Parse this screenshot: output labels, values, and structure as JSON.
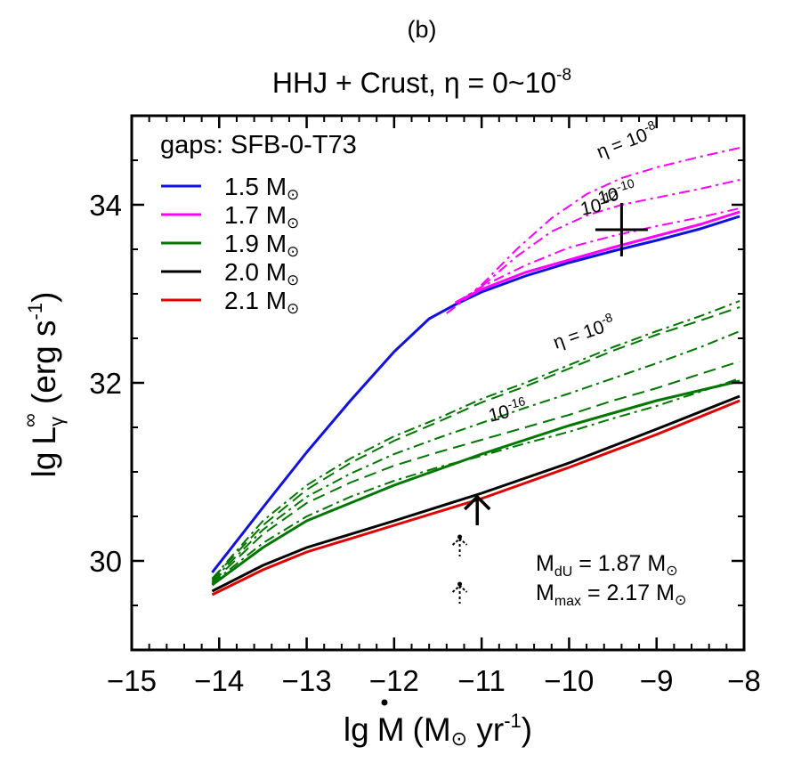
{
  "panel_label": "(b)",
  "chart_data": {
    "type": "line",
    "title": "HHJ + Crust, η = 0~10",
    "title_exponent": "-8",
    "xlabel": {
      "lg": "lg",
      "symbol": "M",
      "units": "(M",
      "sun": "⊙",
      "yr": " yr",
      "exp": "-1",
      "close": ")"
    },
    "ylabel": {
      "lg": "lg",
      "symbol": "L",
      "sub": "γ",
      "sup": "∞",
      "units": " (erg s",
      "exp": "-1",
      "close": ")"
    },
    "xlim": [
      -15,
      -8
    ],
    "ylim": [
      29,
      35
    ],
    "xticks": [
      -15,
      -14,
      -13,
      -12,
      -11,
      -10,
      -9,
      -8
    ],
    "xtick_labels": [
      "−15",
      "−14",
      "−13",
      "−12",
      "−11",
      "−10",
      "−9",
      "−8"
    ],
    "yticks": [
      30,
      32,
      34
    ],
    "ytick_labels": [
      "30",
      "32",
      "34"
    ],
    "legend": {
      "title": "gaps: SFB-0-T73",
      "placement": "top-left",
      "items": [
        {
          "label": "1.5 M",
          "sun": "⊙",
          "color": "#1010e0"
        },
        {
          "label": "1.7 M",
          "sun": "⊙",
          "color": "#ff00ff"
        },
        {
          "label": "1.9 M",
          "sun": "⊙",
          "color": "#007700"
        },
        {
          "label": "2.0 M",
          "sun": "⊙",
          "color": "#000000"
        },
        {
          "label": "2.1 M",
          "sun": "⊙",
          "color": "#e00000"
        }
      ]
    },
    "series": [
      {
        "name": "1.5 M⊙",
        "color": "#1010e0",
        "dash": "solid",
        "x": [
          -14.08,
          -13.5,
          -13.0,
          -12.5,
          -12.0,
          -11.6,
          -11.3,
          -11.0,
          -10.5,
          -10.0,
          -9.5,
          -9.0,
          -8.5,
          -8.05
        ],
        "y": [
          29.87,
          30.6,
          31.22,
          31.8,
          32.35,
          32.72,
          32.88,
          33.02,
          33.2,
          33.35,
          33.48,
          33.6,
          33.73,
          33.87
        ]
      },
      {
        "name": "1.7 M⊙",
        "color": "#ff00ff",
        "dash": "solid",
        "x": [
          -11.3,
          -11.0,
          -10.5,
          -10.0,
          -9.5,
          -9.0,
          -8.5,
          -8.05
        ],
        "y": [
          32.9,
          33.05,
          33.24,
          33.38,
          33.52,
          33.65,
          33.78,
          33.92
        ]
      },
      {
        "name": "η = 10^-8 (1.7 M⊙)",
        "color": "#ff00ff",
        "dash": "dashdot",
        "x": [
          -11.4,
          -11.0,
          -10.6,
          -10.2,
          -9.8,
          -9.4,
          -9.0,
          -8.5,
          -8.05
        ],
        "y": [
          32.78,
          33.1,
          33.5,
          33.85,
          34.12,
          34.3,
          34.42,
          34.54,
          34.64
        ]
      },
      {
        "name": "η = 10^-10 (1.7 M⊙)",
        "color": "#ff00ff",
        "dash": "dashdot",
        "x": [
          -11.4,
          -11.0,
          -10.6,
          -10.2,
          -9.8,
          -9.4,
          -9.0,
          -8.5,
          -8.05
        ],
        "y": [
          32.78,
          33.08,
          33.42,
          33.7,
          33.88,
          34.0,
          34.08,
          34.18,
          34.28
        ]
      },
      {
        "name": "η = 10^-12 (1.7 M⊙)",
        "color": "#ff00ff",
        "dash": "dashdot",
        "x": [
          -11.3,
          -11.0,
          -10.5,
          -10.0,
          -9.5,
          -9.0,
          -8.5,
          -8.05
        ],
        "y": [
          32.9,
          33.08,
          33.32,
          33.52,
          33.65,
          33.76,
          33.86,
          33.96
        ]
      },
      {
        "name": "1.9 M⊙",
        "color": "#007700",
        "dash": "solid",
        "x": [
          -14.08,
          -13.5,
          -13.0,
          -12.0,
          -11.0,
          -10.0,
          -9.0,
          -8.05
        ],
        "y": [
          29.73,
          30.15,
          30.45,
          30.85,
          31.2,
          31.52,
          31.8,
          32.02
        ]
      },
      {
        "name": "η = 10^-8 (1.9 M⊙)",
        "color": "#007700",
        "dash": "dashdot",
        "x": [
          -14.08,
          -13.5,
          -13.0,
          -12.5,
          -12.0,
          -11.5,
          -11.0,
          -10.5,
          -10.0,
          -9.5,
          -9.0,
          -8.5,
          -8.05
        ],
        "y": [
          29.8,
          30.45,
          30.85,
          31.15,
          31.4,
          31.6,
          31.82,
          32.0,
          32.2,
          32.4,
          32.58,
          32.75,
          32.92
        ]
      },
      {
        "name": "1.9 M⊙ (dashed 1)",
        "color": "#007700",
        "dash": "dash",
        "x": [
          -14.08,
          -13.5,
          -13.0,
          -12.5,
          -12.0,
          -11.5,
          -11.0,
          -10.5,
          -10.0,
          -9.5,
          -9.0,
          -8.5,
          -8.05
        ],
        "y": [
          29.8,
          30.4,
          30.8,
          31.1,
          31.35,
          31.56,
          31.78,
          31.96,
          32.16,
          32.36,
          32.54,
          32.7,
          32.85
        ]
      },
      {
        "name": "1.9 M⊙ (dashdot 2)",
        "color": "#007700",
        "dash": "dashdot",
        "x": [
          -14.08,
          -13.5,
          -13.0,
          -12.5,
          -12.0,
          -11.5,
          -11.0,
          -10.5,
          -10.0,
          -9.5,
          -9.0,
          -8.5,
          -8.05
        ],
        "y": [
          29.78,
          30.35,
          30.72,
          30.98,
          31.2,
          31.38,
          31.55,
          31.72,
          31.88,
          32.05,
          32.22,
          32.4,
          32.58
        ]
      },
      {
        "name": "1.9 M⊙ (dashed 2)",
        "color": "#007700",
        "dash": "dash",
        "x": [
          -14.08,
          -13.5,
          -13.0,
          -12.5,
          -12.0,
          -11.5,
          -11.0,
          -10.5,
          -10.0,
          -9.5,
          -9.0,
          -8.5,
          -8.05
        ],
        "y": [
          29.76,
          30.3,
          30.65,
          30.88,
          31.07,
          31.22,
          31.36,
          31.5,
          31.64,
          31.8,
          31.94,
          32.1,
          32.24
        ]
      },
      {
        "name": "η = 10^-16 (1.9 M⊙)",
        "color": "#007700",
        "dash": "dashdot",
        "x": [
          -14.08,
          -13.5,
          -13.0,
          -12.5,
          -12.0,
          -11.5,
          -11.0,
          -10.5,
          -10.0,
          -9.5,
          -9.0,
          -8.5,
          -8.05
        ],
        "y": [
          29.75,
          30.2,
          30.5,
          30.72,
          30.9,
          31.05,
          31.18,
          31.32,
          31.45,
          31.6,
          31.74,
          31.9,
          32.05
        ]
      },
      {
        "name": "2.0 M⊙",
        "color": "#000000",
        "dash": "solid",
        "x": [
          -14.08,
          -13.5,
          -13.0,
          -12.0,
          -11.0,
          -10.0,
          -9.0,
          -8.05
        ],
        "y": [
          29.66,
          29.95,
          30.15,
          30.45,
          30.76,
          31.1,
          31.48,
          31.85
        ]
      },
      {
        "name": "2.1 M⊙",
        "color": "#e00000",
        "dash": "solid",
        "x": [
          -14.08,
          -13.5,
          -13.0,
          -12.0,
          -11.0,
          -10.0,
          -9.0,
          -8.05
        ],
        "y": [
          29.62,
          29.9,
          30.1,
          30.4,
          30.7,
          31.05,
          31.42,
          31.8
        ]
      }
    ],
    "observations": [
      {
        "type": "errorcross",
        "x": -9.4,
        "y": 33.72,
        "dx": 0.3,
        "dy": 0.3
      },
      {
        "type": "upper-arrow",
        "x": -11.05,
        "y": 30.72
      },
      {
        "type": "dashed-arrow",
        "x": -11.25,
        "y": 30.25
      },
      {
        "type": "dashed-arrow",
        "x": -11.25,
        "y": 29.72
      }
    ],
    "annotations": [
      {
        "text": "η = 10",
        "sup": "-8",
        "x": -9.65,
        "y": 34.52,
        "angle": -21
      },
      {
        "text": "10",
        "sup": "-10",
        "x": -9.65,
        "y": 34.0,
        "angle": -15
      },
      {
        "text": "10",
        "sup": "-12",
        "x": -9.85,
        "y": 33.88,
        "angle": -13
      },
      {
        "text": "η = 10",
        "sup": "-8",
        "x": -10.15,
        "y": 32.38,
        "angle": -19
      },
      {
        "text": "10",
        "sup": "-16",
        "x": -10.9,
        "y": 31.56,
        "angle": -14
      }
    ],
    "info": [
      {
        "text": "M",
        "sub": "dU",
        "rest": " = 1.87 M",
        "sun": "⊙"
      },
      {
        "text": "M",
        "sub": "max",
        "rest": " = 2.17 M",
        "sun": "⊙"
      }
    ]
  }
}
